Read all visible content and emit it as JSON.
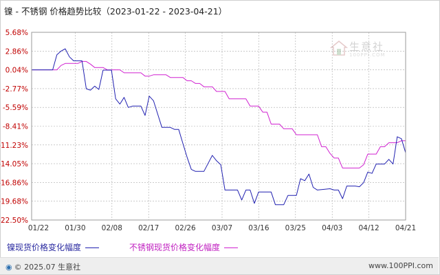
{
  "title": "镍 - 不锈钢 价格趋势比较（2023-01-22 - 2023-04-21）",
  "watermark": {
    "text": "生意社",
    "sub": "100PPI.COM"
  },
  "legend": {
    "series_a": "镍现货价格变化幅度",
    "series_b": "不锈钢现货价格变化幅度"
  },
  "footer": {
    "left_icon": "globe-icon",
    "left": "© 2025.07 生意社",
    "right": "www.100PPI.com"
  },
  "colors": {
    "series_a": "#1f1fb0",
    "series_b": "#d020d0",
    "grid": "#aaaaaa",
    "y_tick_label": "#c00000"
  },
  "chart_data": {
    "type": "line",
    "x_ticks": [
      "01/22",
      "01/30",
      "02/08",
      "02/17",
      "02/26",
      "03/07",
      "03/16",
      "03/25",
      "04/03",
      "04/12",
      "04/21"
    ],
    "y_ticks": [
      "5.68%",
      "2.86%",
      "0.04%",
      "-2.77%",
      "-5.59%",
      "-8.41%",
      "-11.23%",
      "-14.05%",
      "-16.86%",
      "-19.68%",
      "-22.50%"
    ],
    "ylim": [
      -22.5,
      5.68
    ],
    "x_start": "2023-01-22",
    "x_end": "2023-04-21",
    "grid": "dashed",
    "legend_position": "bottom",
    "series": [
      {
        "name": "镍现货价格变化幅度",
        "points": [
          [
            "2023-01-22",
            0.04
          ],
          [
            "2023-01-27",
            0.04
          ],
          [
            "2023-01-28",
            2.3
          ],
          [
            "2023-01-29",
            2.86
          ],
          [
            "2023-01-30",
            3.2
          ],
          [
            "2023-01-31",
            2.0
          ],
          [
            "2023-02-01",
            1.4
          ],
          [
            "2023-02-02",
            1.4
          ],
          [
            "2023-02-03",
            1.4
          ],
          [
            "2023-02-04",
            -2.8
          ],
          [
            "2023-02-05",
            -3.0
          ],
          [
            "2023-02-06",
            -2.4
          ],
          [
            "2023-02-07",
            -2.9
          ],
          [
            "2023-02-08",
            0.0
          ],
          [
            "2023-02-09",
            0.0
          ],
          [
            "2023-02-10",
            0.0
          ],
          [
            "2023-02-11",
            -4.3
          ],
          [
            "2023-02-12",
            -5.1
          ],
          [
            "2023-02-13",
            -4.1
          ],
          [
            "2023-02-14",
            -5.6
          ],
          [
            "2023-02-15",
            -5.4
          ],
          [
            "2023-02-17",
            -5.4
          ],
          [
            "2023-02-18",
            -6.8
          ],
          [
            "2023-02-19",
            -3.9
          ],
          [
            "2023-02-20",
            -4.6
          ],
          [
            "2023-02-21",
            -6.6
          ],
          [
            "2023-02-22",
            -8.6
          ],
          [
            "2023-02-24",
            -8.6
          ],
          [
            "2023-02-25",
            -8.9
          ],
          [
            "2023-02-26",
            -8.9
          ],
          [
            "2023-02-27",
            -11.0
          ],
          [
            "2023-02-28",
            -13.1
          ],
          [
            "2023-03-01",
            -14.9
          ],
          [
            "2023-03-02",
            -15.2
          ],
          [
            "2023-03-04",
            -15.2
          ],
          [
            "2023-03-05",
            -14.0
          ],
          [
            "2023-03-06",
            -12.8
          ],
          [
            "2023-03-07",
            -13.6
          ],
          [
            "2023-03-08",
            -14.2
          ],
          [
            "2023-03-09",
            -18.0
          ],
          [
            "2023-03-12",
            -18.0
          ],
          [
            "2023-03-13",
            -19.5
          ],
          [
            "2023-03-14",
            -18.0
          ],
          [
            "2023-03-15",
            -18.0
          ],
          [
            "2023-03-16",
            -20.0
          ],
          [
            "2023-03-17",
            -18.3
          ],
          [
            "2023-03-20",
            -18.3
          ],
          [
            "2023-03-21",
            -20.2
          ],
          [
            "2023-03-23",
            -20.2
          ],
          [
            "2023-03-24",
            -18.8
          ],
          [
            "2023-03-26",
            -18.8
          ],
          [
            "2023-03-27",
            -16.3
          ],
          [
            "2023-03-28",
            -16.6
          ],
          [
            "2023-03-29",
            -15.6
          ],
          [
            "2023-03-30",
            -17.6
          ],
          [
            "2023-03-31",
            -18.0
          ],
          [
            "2023-04-03",
            -17.8
          ],
          [
            "2023-04-04",
            -18.0
          ],
          [
            "2023-04-05",
            -18.0
          ],
          [
            "2023-04-06",
            -19.3
          ],
          [
            "2023-04-07",
            -17.4
          ],
          [
            "2023-04-09",
            -17.4
          ],
          [
            "2023-04-10",
            -17.5
          ],
          [
            "2023-04-11",
            -16.9
          ],
          [
            "2023-04-12",
            -15.3
          ],
          [
            "2023-04-13",
            -15.5
          ],
          [
            "2023-04-14",
            -14.1
          ],
          [
            "2023-04-16",
            -14.1
          ],
          [
            "2023-04-17",
            -13.4
          ],
          [
            "2023-04-18",
            -14.1
          ],
          [
            "2023-04-19",
            -10.0
          ],
          [
            "2023-04-20",
            -10.3
          ],
          [
            "2023-04-21",
            -12.4
          ]
        ]
      },
      {
        "name": "不锈钢现货价格变化幅度",
        "points": [
          [
            "2023-01-22",
            0.04
          ],
          [
            "2023-01-28",
            0.04
          ],
          [
            "2023-01-29",
            0.7
          ],
          [
            "2023-01-30",
            1.0
          ],
          [
            "2023-02-02",
            1.0
          ],
          [
            "2023-02-03",
            1.3
          ],
          [
            "2023-02-04",
            1.3
          ],
          [
            "2023-02-05",
            0.9
          ],
          [
            "2023-02-06",
            0.4
          ],
          [
            "2023-02-08",
            0.4
          ],
          [
            "2023-02-09",
            0.04
          ],
          [
            "2023-02-12",
            0.04
          ],
          [
            "2023-02-13",
            -0.4
          ],
          [
            "2023-02-17",
            -0.4
          ],
          [
            "2023-02-18",
            -0.9
          ],
          [
            "2023-02-19",
            -0.9
          ],
          [
            "2023-02-20",
            -0.7
          ],
          [
            "2023-02-23",
            -0.7
          ],
          [
            "2023-02-24",
            -1.1
          ],
          [
            "2023-02-27",
            -1.1
          ],
          [
            "2023-02-28",
            -1.6
          ],
          [
            "2023-03-01",
            -1.6
          ],
          [
            "2023-03-02",
            -2.0
          ],
          [
            "2023-03-03",
            -2.0
          ],
          [
            "2023-03-04",
            -2.5
          ],
          [
            "2023-03-06",
            -2.5
          ],
          [
            "2023-03-07",
            -3.2
          ],
          [
            "2023-03-09",
            -3.2
          ],
          [
            "2023-03-10",
            -4.3
          ],
          [
            "2023-03-14",
            -4.3
          ],
          [
            "2023-03-15",
            -5.4
          ],
          [
            "2023-03-17",
            -5.4
          ],
          [
            "2023-03-18",
            -6.3
          ],
          [
            "2023-03-19",
            -6.3
          ],
          [
            "2023-03-20",
            -8.1
          ],
          [
            "2023-03-22",
            -8.1
          ],
          [
            "2023-03-23",
            -8.8
          ],
          [
            "2023-03-25",
            -8.8
          ],
          [
            "2023-03-26",
            -9.7
          ],
          [
            "2023-03-31",
            -9.7
          ],
          [
            "2023-04-01",
            -11.5
          ],
          [
            "2023-04-02",
            -11.5
          ],
          [
            "2023-04-03",
            -12.5
          ],
          [
            "2023-04-04",
            -13.2
          ],
          [
            "2023-04-05",
            -13.2
          ],
          [
            "2023-04-06",
            -14.7
          ],
          [
            "2023-04-10",
            -14.7
          ],
          [
            "2023-04-11",
            -14.2
          ],
          [
            "2023-04-12",
            -12.6
          ],
          [
            "2023-04-14",
            -12.6
          ],
          [
            "2023-04-15",
            -11.5
          ],
          [
            "2023-04-16",
            -11.5
          ],
          [
            "2023-04-17",
            -10.9
          ],
          [
            "2023-04-19",
            -10.9
          ],
          [
            "2023-04-20",
            -10.6
          ],
          [
            "2023-04-21",
            -10.6
          ]
        ]
      }
    ]
  }
}
